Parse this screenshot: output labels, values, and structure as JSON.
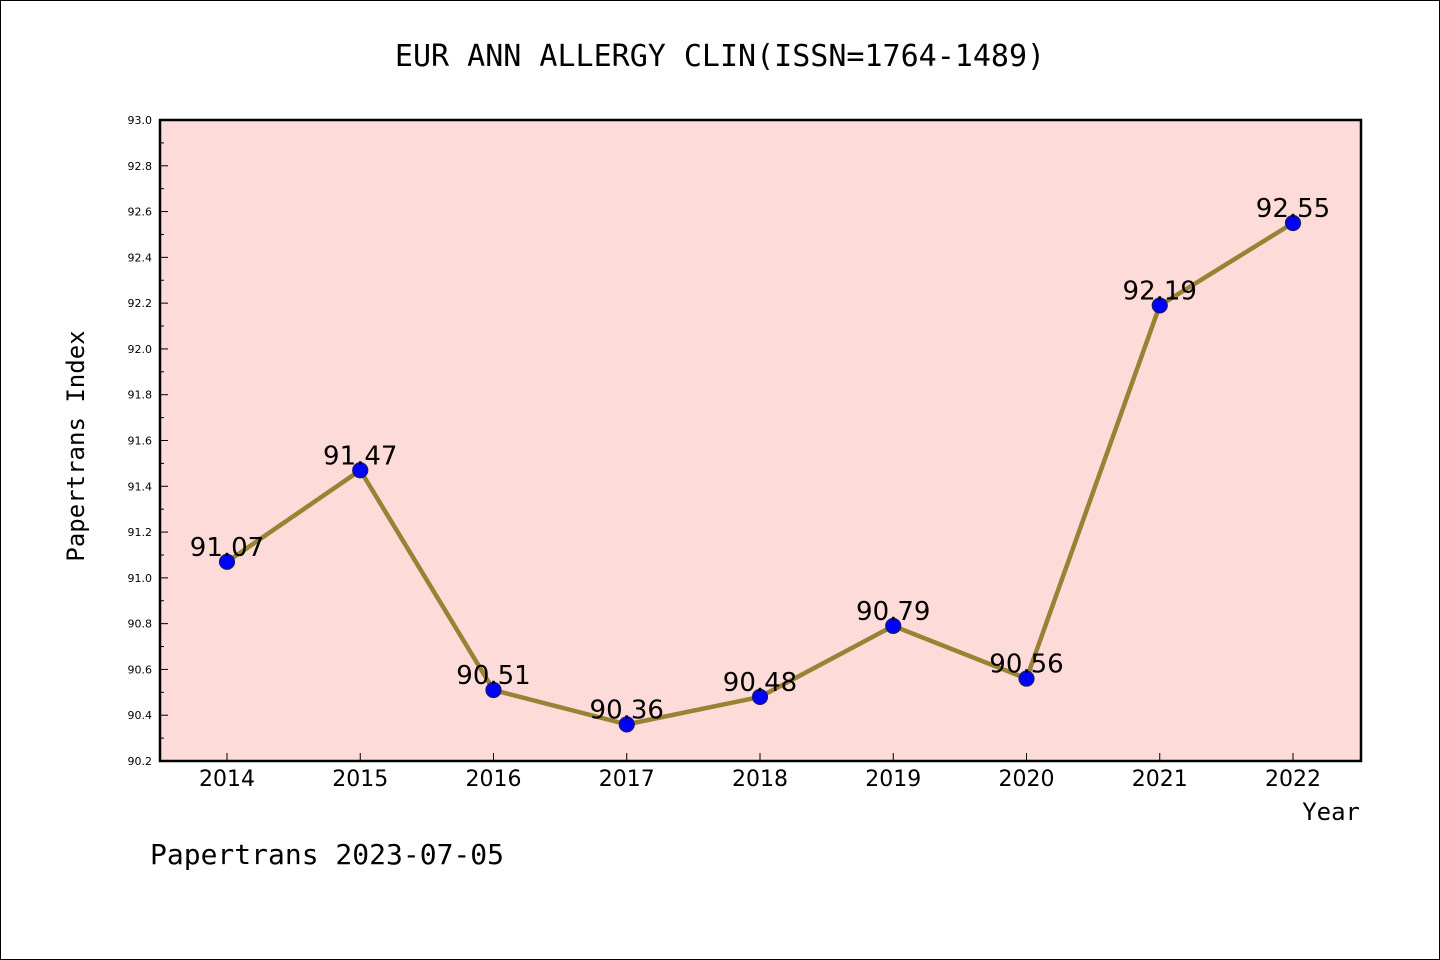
{
  "chart_data": {
    "type": "line",
    "title": "EUR ANN ALLERGY CLIN(ISSN=1764-1489)",
    "xlabel": "Year",
    "ylabel": "Papertrans Index",
    "categories": [
      "2014",
      "2015",
      "2016",
      "2017",
      "2018",
      "2019",
      "2020",
      "2021",
      "2022"
    ],
    "series": [
      {
        "values": [
          91.07,
          91.47,
          90.51,
          90.36,
          90.48,
          90.79,
          90.56,
          92.19,
          92.55
        ]
      }
    ],
    "data_labels": [
      "91.07",
      "91.47",
      "90.51",
      "90.36",
      "90.48",
      "90.79",
      "90.56",
      "92.19",
      "92.55"
    ],
    "ylim": [
      90.2,
      93.0
    ],
    "yticks": [
      "90.2",
      "90.4",
      "90.6",
      "90.8",
      "91.0",
      "91.2",
      "91.4",
      "91.6",
      "91.8",
      "92.0",
      "92.2",
      "92.4",
      "92.6",
      "92.8",
      "93.0"
    ],
    "grid": false,
    "legend": "none",
    "colors": {
      "plot_background": "#fddbd8",
      "line": "#9a8235",
      "marker": "#0000ff",
      "marker_edge": "#1a1a6e"
    }
  },
  "footer": "Papertrans 2023-07-05"
}
